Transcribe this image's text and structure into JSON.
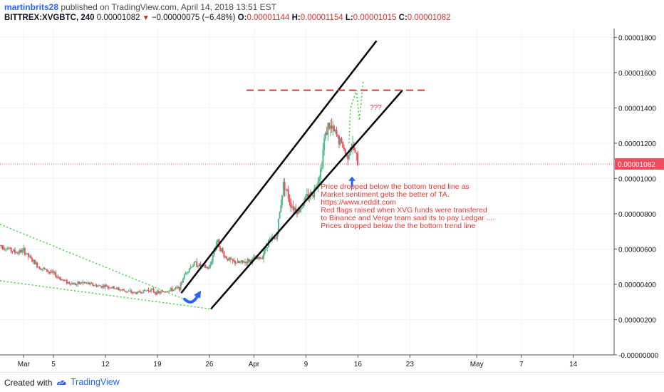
{
  "header": {
    "author": "martinbrits28",
    "published_text": "published on TradingView.com, April 14, 2018 13:51 EST",
    "symbol": "BITTREX:XVGBTC, 240",
    "last_price": "0.00001082",
    "change": "−0.00000075 (−6.48%)",
    "open_label": "O:",
    "open": "0.00001144",
    "high_label": "H:",
    "high": "0.00001154",
    "low_label": "L:",
    "low": "0.00001015",
    "close_label": "C:",
    "close": "0.00001082"
  },
  "chart_data": {
    "type": "candlestick",
    "title": "BITTREX:XVGBTC, 240",
    "ylim": [
      -5e-09,
      1.85e-05
    ],
    "y_ticks": [
      "0.00001800",
      "0.00001600",
      "0.00001400",
      "0.00001200",
      "0.00001000",
      "0.00000800",
      "0.00000600",
      "0.00000400",
      "0.00000200",
      "-0.00000000"
    ],
    "y_tick_values": [
      1.8e-05,
      1.6e-05,
      1.4e-05,
      1.2e-05,
      1e-05,
      8e-06,
      6e-06,
      4e-06,
      2e-06,
      0
    ],
    "x_ticks": [
      "Mar",
      "5",
      "12",
      "19",
      "26",
      "Apr",
      "9",
      "16",
      "23",
      "May",
      "7",
      "14"
    ],
    "x_tick_days": [
      0,
      4,
      11,
      18,
      25,
      31,
      38,
      45,
      52,
      61,
      67,
      74
    ],
    "x_day_range": [
      -3.2,
      79.5
    ],
    "current_price_label": "0.00001082",
    "current_price": 1.082e-05,
    "price_series_days": [
      -3.2,
      -2,
      -1,
      0,
      1,
      2,
      3,
      4,
      5,
      6,
      7,
      8,
      9,
      10,
      11,
      12,
      13,
      14,
      15,
      16,
      17,
      18,
      19,
      20,
      21,
      21.5,
      22,
      23,
      24,
      25,
      26,
      27,
      28,
      29,
      30,
      31,
      32,
      33,
      34,
      35,
      36,
      37,
      38,
      39,
      40,
      40.5,
      41,
      42,
      43,
      43.5,
      44,
      44.5,
      45
    ],
    "price_series_values": [
      6.2e-06,
      6e-06,
      5.8e-06,
      5.9e-06,
      5.4e-06,
      5e-06,
      4.8e-06,
      4.6e-06,
      4.3e-06,
      4.1e-06,
      4e-06,
      4.1e-06,
      4e-06,
      3.9e-06,
      3.9e-06,
      3.8e-06,
      3.7e-06,
      3.6e-06,
      3.5e-06,
      3.6e-06,
      3.7e-06,
      3.5e-06,
      3.6e-06,
      3.7e-06,
      3.8e-06,
      4.4e-06,
      4.8e-06,
      5.2e-06,
      5e-06,
      4.9e-06,
      6.5e-06,
      5.6e-06,
      5.3e-06,
      5.2e-06,
      5.3e-06,
      5.4e-06,
      5.5e-06,
      6.5e-06,
      6.6e-06,
      9.8e-06,
      8.5e-06,
      8.1e-06,
      8.9e-06,
      9.2e-06,
      1.05e-05,
      1.23e-05,
      1.3e-05,
      1.25e-05,
      1.18e-05,
      1.12e-05,
      1.19e-05,
      1.16e-05,
      1.08e-05
    ],
    "projection_days": [
      43.8,
      44.0,
      44.8,
      45.2,
      45.7
    ],
    "projection_values": [
      1.2e-05,
      1.4e-05,
      1.5e-05,
      1.33e-05,
      1.55e-05
    ],
    "upper_channel": {
      "days": [
        21.2,
        47.5
      ],
      "values": [
        3.5e-06,
        1.78e-05
      ]
    },
    "lower_channel": {
      "days": [
        25.2,
        51.0
      ],
      "values": [
        2.6e-06,
        1.5e-05
      ]
    },
    "resistance_level": {
      "days": [
        30.0,
        54.0
      ],
      "value": 1.5e-05
    },
    "wedge_upper": {
      "days": [
        -3.2,
        22.5
      ],
      "values": [
        7.4e-06,
        3e-06
      ]
    },
    "wedge_lower": {
      "days": [
        -3.2,
        25.2
      ],
      "values": [
        4.2e-06,
        2.6e-06
      ]
    },
    "question_marks": "???",
    "note_lines": [
      "Price dropped below the bottom trend line as",
      "Market sentiment gets the better of TA.",
      "https://www.reddit.com",
      "Red flags raised when XVG funds were transfered",
      "to Binance and Verge team said its to pay Ledgar ....",
      "Prices dropped below the the bottom trend line"
    ],
    "colors": {
      "up": "#53b987",
      "down": "#eb4d5c",
      "channel": "#000000",
      "resistance": "#e53935",
      "wedge": "#3bd33b",
      "arrow": "#2962ff",
      "note": "#e53935"
    }
  },
  "footer": {
    "created_label": "Created with",
    "brand": "TradingView"
  }
}
